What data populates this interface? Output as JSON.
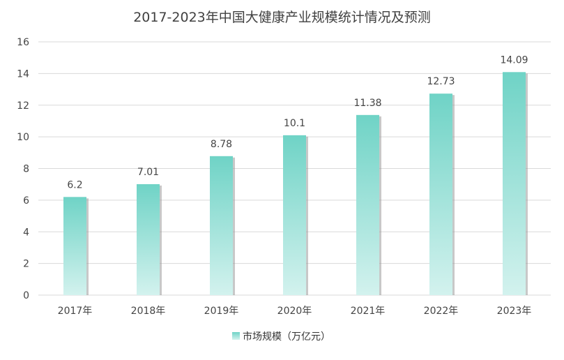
{
  "chart_data": {
    "type": "bar",
    "title": "2017-2023年中国大健康产业规模统计情况及预测",
    "categories": [
      "2017年",
      "2018年",
      "2019年",
      "2020年",
      "2021年",
      "2022年",
      "2023年"
    ],
    "series": [
      {
        "name": "市场规模（万亿元）",
        "values": [
          6.2,
          7.01,
          8.78,
          10.1,
          11.38,
          12.73,
          14.09
        ],
        "data_labels": [
          "6.2",
          "7.01",
          "8.78",
          "10.1",
          "11.38",
          "12.73",
          "14.09"
        ]
      }
    ],
    "ylim": [
      0,
      16
    ],
    "y_ticks": [
      "0",
      "2",
      "4",
      "6",
      "8",
      "10",
      "12",
      "14",
      "16"
    ],
    "grid": true,
    "legend": "bottom",
    "colors": {
      "bar_top": "#6fd3c6",
      "bar_bottom": "#d3f2ee",
      "shadow": "#9a9a9a",
      "grid": "#d9d9d9"
    }
  }
}
